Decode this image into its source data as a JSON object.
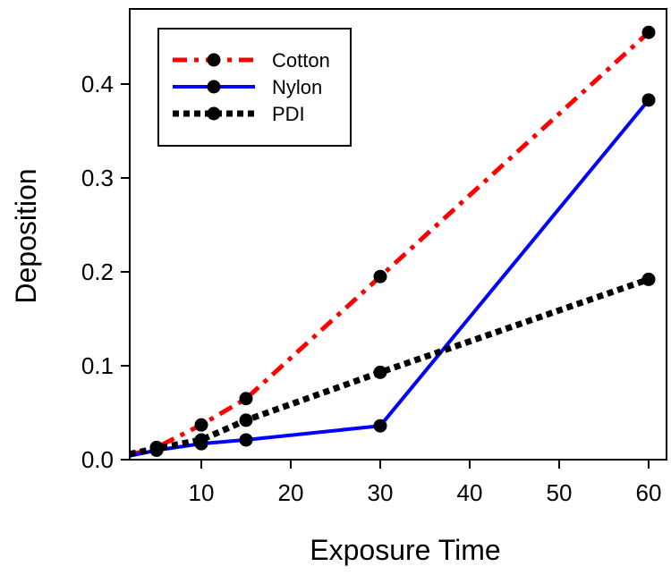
{
  "chart_data": {
    "type": "line",
    "title": "",
    "xlabel": "Exposure Time",
    "ylabel": "Deposition",
    "xlim": [
      2,
      62
    ],
    "ylim": [
      0,
      0.48
    ],
    "xticks": [
      10,
      20,
      30,
      40,
      50,
      60
    ],
    "yticks": [
      0.0,
      0.1,
      0.2,
      0.3,
      0.4
    ],
    "ytick_labels": [
      "0.0",
      "0.1",
      "0.2",
      "0.3",
      "0.4"
    ],
    "grid": false,
    "legend_position": "top-left",
    "series": [
      {
        "name": "Cotton",
        "color": "#ff0000",
        "line_style": "dash-dot",
        "points": [
          [
            2,
            0.005
          ],
          [
            5,
            0.013
          ],
          [
            10,
            0.037
          ],
          [
            15,
            0.065
          ],
          [
            30,
            0.195
          ],
          [
            60,
            0.455
          ]
        ]
      },
      {
        "name": "Nylon",
        "color": "#0000ff",
        "line_style": "solid",
        "points": [
          [
            2,
            0.004
          ],
          [
            5,
            0.01
          ],
          [
            10,
            0.017
          ],
          [
            15,
            0.021
          ],
          [
            30,
            0.036
          ],
          [
            60,
            0.383
          ]
        ]
      },
      {
        "name": "PDI",
        "color": "#000000",
        "line_style": "dotted",
        "points": [
          [
            2,
            0.006
          ],
          [
            5,
            0.012
          ],
          [
            10,
            0.021
          ],
          [
            15,
            0.042
          ],
          [
            30,
            0.093
          ],
          [
            60,
            0.192
          ]
        ]
      }
    ]
  }
}
